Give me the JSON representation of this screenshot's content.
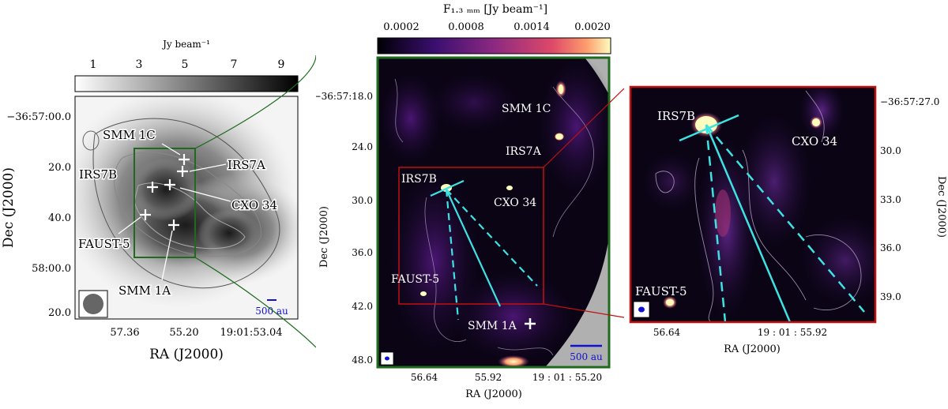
{
  "left_panel": {
    "colorbar": {
      "unit": "Jy beam⁻¹",
      "ticks": [
        "1",
        "3",
        "5",
        "7",
        "9"
      ]
    },
    "y_ticks": [
      "−36:57:00.0",
      "20.0",
      "40.0",
      "58:00.0",
      "20.0"
    ],
    "x_ticks": [
      "57.36",
      "55.20",
      "19:01:53.04"
    ],
    "xlabel": "RA (J2000)",
    "ylabel": "Dec (J2000)",
    "sources": [
      "SMM 1C",
      "IRS7B",
      "IRS7A",
      "CXO 34",
      "FAUST-5",
      "SMM 1A"
    ],
    "scalebar": "500 au"
  },
  "middle_panel": {
    "colorbar": {
      "label": "F₁.₃ ₘₘ [Jy beam⁻¹]",
      "ticks": [
        "0.0002",
        "0.0008",
        "0.0014",
        "0.0020"
      ]
    },
    "y_ticks": [
      "−36:57:18.0",
      "24.0",
      "30.0",
      "36.0",
      "42.0",
      "48.0"
    ],
    "x_ticks": [
      "56.64",
      "55.92",
      "19 : 01 : 55.20"
    ],
    "xlabel": "RA (J2000)",
    "ylabel": "Dec (J2000)",
    "sources": [
      "SMM 1C",
      "IRS7A",
      "IRS7B",
      "CXO 34",
      "FAUST-5",
      "SMM 1A"
    ],
    "scalebar": "500 au"
  },
  "right_panel": {
    "y_ticks": [
      "−36:57:27.0",
      "30.0",
      "33.0",
      "36.0",
      "39.0"
    ],
    "x_ticks": [
      "56.64",
      "19 : 01 : 55.92"
    ],
    "xlabel": "RA (J2000)",
    "ylabel": "Dec (J2000)",
    "sources": [
      "IRS7B",
      "CXO 34",
      "FAUST-5"
    ]
  },
  "colors": {
    "zoom_box_green": "#1e6b1e",
    "zoom_box_red": "#c01010",
    "outflow_cyan": "#3de3e3",
    "beam_blue": "#1010d0",
    "background_dark": "#0a0414"
  }
}
